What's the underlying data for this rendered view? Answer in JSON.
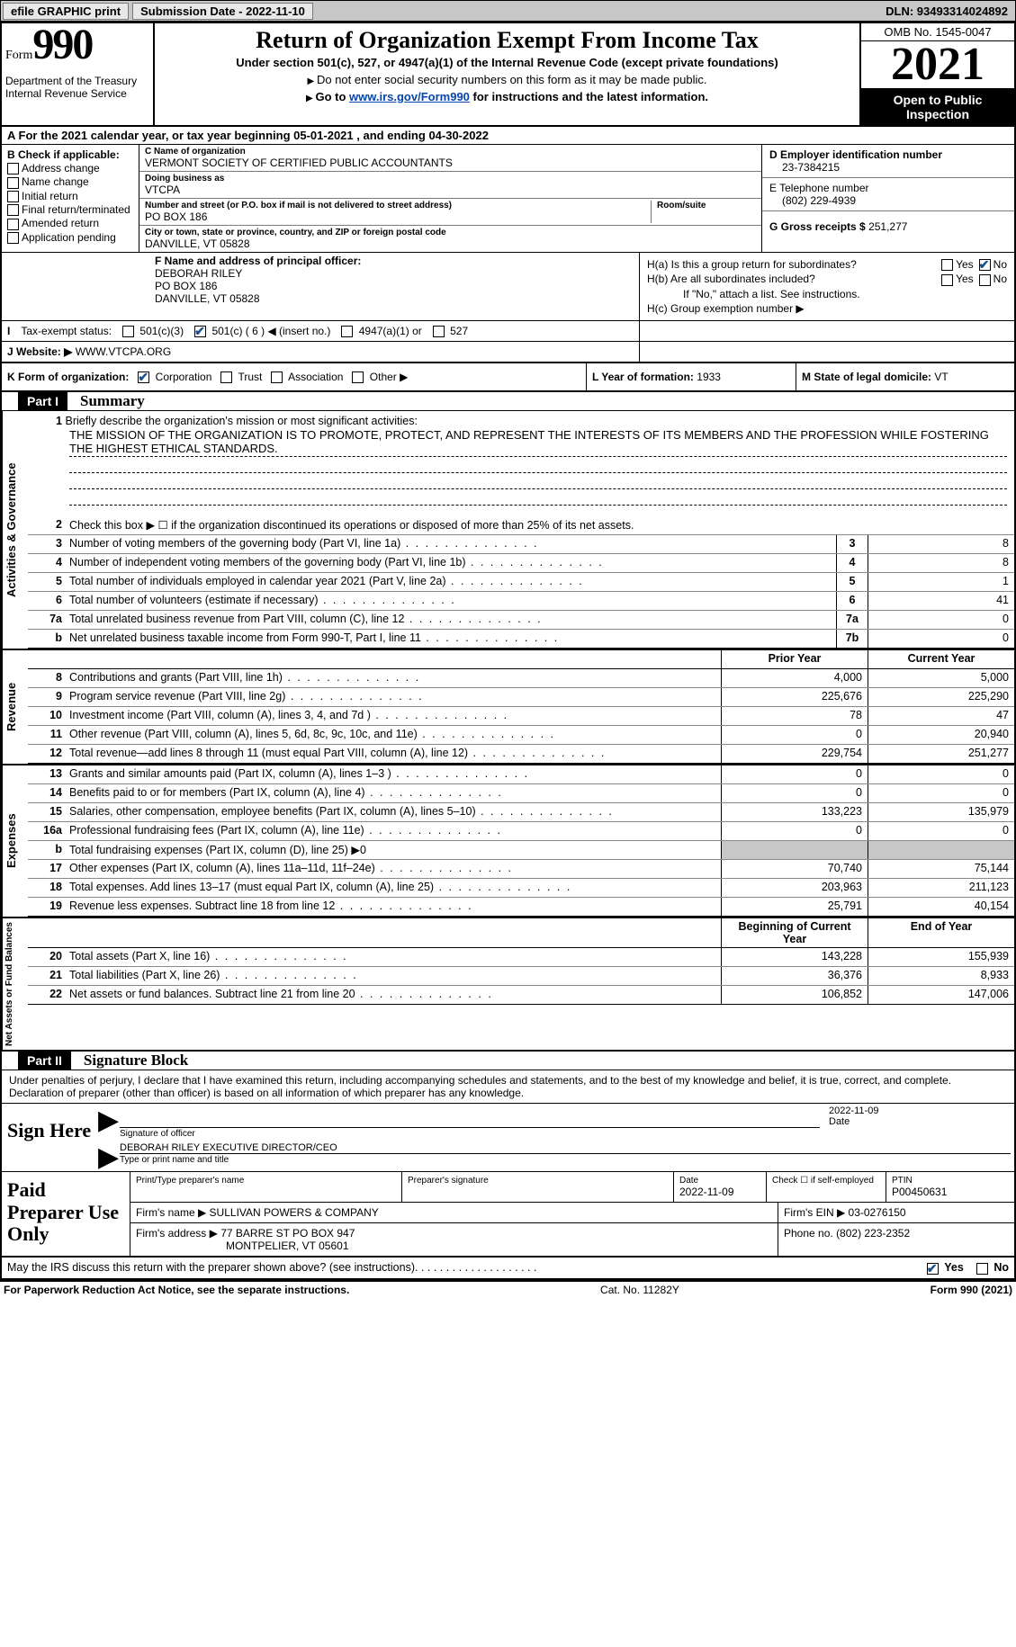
{
  "top": {
    "efile": "efile GRAPHIC print",
    "submission": "Submission Date - 2022-11-10",
    "dln": "DLN: 93493314024892"
  },
  "header": {
    "form_label": "Form",
    "form_num": "990",
    "dept": "Department of the Treasury",
    "irs": "Internal Revenue Service",
    "title": "Return of Organization Exempt From Income Tax",
    "sub1": "Under section 501(c), 527, or 4947(a)(1) of the Internal Revenue Code (except private foundations)",
    "sub2": "Do not enter social security numbers on this form as it may be made public.",
    "sub3_pre": "Go to ",
    "sub3_link": "www.irs.gov/Form990",
    "sub3_post": " for instructions and the latest information.",
    "omb": "OMB No. 1545-0047",
    "year": "2021",
    "open": "Open to Public Inspection"
  },
  "row_a": {
    "prefix": "A For the 2021 calendar year, or tax year beginning ",
    "begin": "05-01-2021",
    "mid": " , and ending ",
    "end": "04-30-2022"
  },
  "section_b": {
    "label": "B Check if applicable:",
    "opts": [
      "Address change",
      "Name change",
      "Initial return",
      "Final return/terminated",
      "Amended return",
      "Application pending"
    ]
  },
  "section_c": {
    "name_lbl": "C Name of organization",
    "name": "VERMONT SOCIETY OF CERTIFIED PUBLIC ACCOUNTANTS",
    "dba_lbl": "Doing business as",
    "dba": "VTCPA",
    "street_lbl": "Number and street (or P.O. box if mail is not delivered to street address)",
    "room_lbl": "Room/suite",
    "street": "PO BOX 186",
    "city_lbl": "City or town, state or province, country, and ZIP or foreign postal code",
    "city": "DANVILLE, VT  05828"
  },
  "section_d": {
    "lbl": "D Employer identification number",
    "val": "23-7384215"
  },
  "section_e": {
    "lbl": "E Telephone number",
    "val": "(802) 229-4939"
  },
  "section_g": {
    "lbl": "G Gross receipts $",
    "val": "251,277"
  },
  "section_f": {
    "lbl": "F Name and address of principal officer:",
    "name": "DEBORAH RILEY",
    "addr1": "PO BOX 186",
    "addr2": "DANVILLE, VT  05828"
  },
  "section_h": {
    "ha": "H(a)  Is this a group return for subordinates?",
    "hb": "H(b)  Are all subordinates included?",
    "hb_note": "If \"No,\" attach a list. See instructions.",
    "hc": "H(c)  Group exemption number ▶",
    "yes": "Yes",
    "no": "No"
  },
  "section_i": {
    "lbl": "Tax-exempt status:",
    "o1": "501(c)(3)",
    "o2": "501(c) ( 6 ) ◀ (insert no.)",
    "o3": "4947(a)(1) or",
    "o4": "527"
  },
  "section_j": {
    "lbl": "Website: ▶",
    "val": "WWW.VTCPA.ORG"
  },
  "section_k": {
    "lbl": "K Form of organization:",
    "o1": "Corporation",
    "o2": "Trust",
    "o3": "Association",
    "o4": "Other ▶"
  },
  "section_l": {
    "lbl": "L Year of formation:",
    "val": "1933"
  },
  "section_m": {
    "lbl": "M State of legal domicile:",
    "val": "VT"
  },
  "part1": {
    "hdr": "Part I",
    "title": "Summary"
  },
  "summary": {
    "q1": "Briefly describe the organization's mission or most significant activities:",
    "mission": "THE MISSION OF THE ORGANIZATION IS TO PROMOTE, PROTECT, AND REPRESENT THE INTERESTS OF ITS MEMBERS AND THE PROFESSION WHILE FOSTERING THE HIGHEST ETHICAL STANDARDS.",
    "q2": "Check this box ▶ ☐  if the organization discontinued its operations or disposed of more than 25% of its net assets.",
    "vtab1": "Activities & Governance",
    "vtab2": "Revenue",
    "vtab3": "Expenses",
    "vtab4": "Net Assets or Fund Balances",
    "prior_hdr": "Prior Year",
    "cur_hdr": "Current Year",
    "begin_hdr": "Beginning of Current Year",
    "end_hdr": "End of Year",
    "lines_gov": [
      {
        "n": "3",
        "d": "Number of voting members of the governing body (Part VI, line 1a)",
        "v": "8"
      },
      {
        "n": "4",
        "d": "Number of independent voting members of the governing body (Part VI, line 1b)",
        "v": "8"
      },
      {
        "n": "5",
        "d": "Total number of individuals employed in calendar year 2021 (Part V, line 2a)",
        "v": "1"
      },
      {
        "n": "6",
        "d": "Total number of volunteers (estimate if necessary)",
        "v": "41"
      },
      {
        "n": "7a",
        "d": "Total unrelated business revenue from Part VIII, column (C), line 12",
        "v": "0"
      },
      {
        "n": "b",
        "d": "Net unrelated business taxable income from Form 990-T, Part I, line 11",
        "nc": "7b",
        "v": "0"
      }
    ],
    "lines_rev": [
      {
        "n": "8",
        "d": "Contributions and grants (Part VIII, line 1h)",
        "p": "4,000",
        "c": "5,000"
      },
      {
        "n": "9",
        "d": "Program service revenue (Part VIII, line 2g)",
        "p": "225,676",
        "c": "225,290"
      },
      {
        "n": "10",
        "d": "Investment income (Part VIII, column (A), lines 3, 4, and 7d )",
        "p": "78",
        "c": "47"
      },
      {
        "n": "11",
        "d": "Other revenue (Part VIII, column (A), lines 5, 6d, 8c, 9c, 10c, and 11e)",
        "p": "0",
        "c": "20,940"
      },
      {
        "n": "12",
        "d": "Total revenue—add lines 8 through 11 (must equal Part VIII, column (A), line 12)",
        "p": "229,754",
        "c": "251,277"
      }
    ],
    "lines_exp": [
      {
        "n": "13",
        "d": "Grants and similar amounts paid (Part IX, column (A), lines 1–3 )",
        "p": "0",
        "c": "0"
      },
      {
        "n": "14",
        "d": "Benefits paid to or for members (Part IX, column (A), line 4)",
        "p": "0",
        "c": "0"
      },
      {
        "n": "15",
        "d": "Salaries, other compensation, employee benefits (Part IX, column (A), lines 5–10)",
        "p": "133,223",
        "c": "135,979"
      },
      {
        "n": "16a",
        "d": "Professional fundraising fees (Part IX, column (A), line 11e)",
        "p": "0",
        "c": "0"
      },
      {
        "n": "b",
        "d": "Total fundraising expenses (Part IX, column (D), line 25) ▶0",
        "p": "",
        "c": "",
        "grey": true
      },
      {
        "n": "17",
        "d": "Other expenses (Part IX, column (A), lines 11a–11d, 11f–24e)",
        "p": "70,740",
        "c": "75,144"
      },
      {
        "n": "18",
        "d": "Total expenses. Add lines 13–17 (must equal Part IX, column (A), line 25)",
        "p": "203,963",
        "c": "211,123"
      },
      {
        "n": "19",
        "d": "Revenue less expenses. Subtract line 18 from line 12",
        "p": "25,791",
        "c": "40,154"
      }
    ],
    "lines_net": [
      {
        "n": "20",
        "d": "Total assets (Part X, line 16)",
        "p": "143,228",
        "c": "155,939"
      },
      {
        "n": "21",
        "d": "Total liabilities (Part X, line 26)",
        "p": "36,376",
        "c": "8,933"
      },
      {
        "n": "22",
        "d": "Net assets or fund balances. Subtract line 21 from line 20",
        "p": "106,852",
        "c": "147,006"
      }
    ]
  },
  "part2": {
    "hdr": "Part II",
    "title": "Signature Block"
  },
  "sig": {
    "declare": "Under penalties of perjury, I declare that I have examined this return, including accompanying schedules and statements, and to the best of my knowledge and belief, it is true, correct, and complete. Declaration of preparer (other than officer) is based on all information of which preparer has any knowledge.",
    "sign_here": "Sign Here",
    "sig_officer": "Signature of officer",
    "date_lbl": "Date",
    "date": "2022-11-09",
    "name": "DEBORAH RILEY  EXECUTIVE DIRECTOR/CEO",
    "name_lbl": "Type or print name and title"
  },
  "prep": {
    "lbl": "Paid Preparer Use Only",
    "name_lbl": "Print/Type preparer's name",
    "sig_lbl": "Preparer's signature",
    "date_lbl": "Date",
    "date": "2022-11-09",
    "self_lbl": "Check ☐ if self-employed",
    "ptin_lbl": "PTIN",
    "ptin": "P00450631",
    "firm_name_lbl": "Firm's name   ▶",
    "firm_name": "SULLIVAN POWERS & COMPANY",
    "firm_ein_lbl": "Firm's EIN ▶",
    "firm_ein": "03-0276150",
    "firm_addr_lbl": "Firm's address ▶",
    "firm_addr1": "77 BARRE ST PO BOX 947",
    "firm_addr2": "MONTPELIER, VT  05601",
    "phone_lbl": "Phone no.",
    "phone": "(802) 223-2352"
  },
  "discuss": {
    "q": "May the IRS discuss this return with the preparer shown above? (see instructions)",
    "yes": "Yes",
    "no": "No"
  },
  "footer": {
    "left": "For Paperwork Reduction Act Notice, see the separate instructions.",
    "mid": "Cat. No. 11282Y",
    "right": "Form 990 (2021)"
  }
}
